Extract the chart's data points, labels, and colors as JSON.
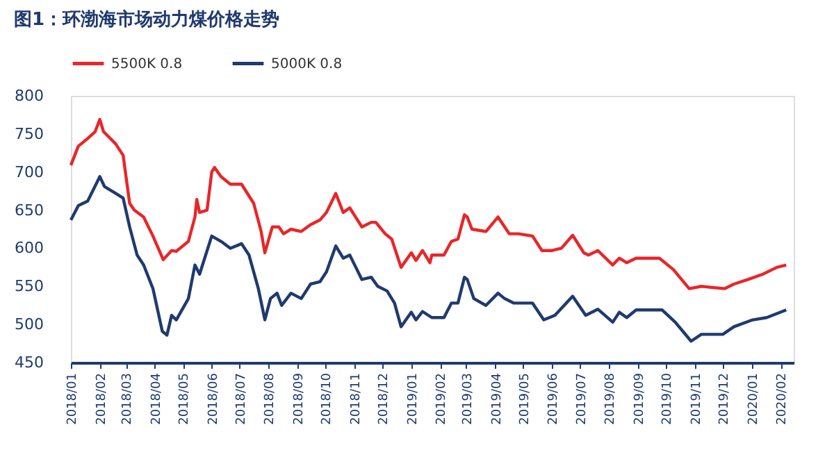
{
  "chart_data": {
    "type": "line",
    "title": "图1：环渤海市场动力煤价格走势",
    "legend": "top",
    "grid": false,
    "marker": "none",
    "line_style": "solid",
    "ylim": [
      450,
      800
    ],
    "yticks": [
      450,
      500,
      550,
      600,
      650,
      700,
      750,
      800
    ],
    "xlim": [
      "2018-01-01",
      "2020-02-15"
    ],
    "xticks": [
      {
        "value": "2018-01",
        "label": "2018/01"
      },
      {
        "value": "2018-02",
        "label": "2018/02"
      },
      {
        "value": "2018-03",
        "label": "2018/03"
      },
      {
        "value": "2018-04",
        "label": "2018/04"
      },
      {
        "value": "2018-05",
        "label": "2018/05"
      },
      {
        "value": "2018-06",
        "label": "2018/06"
      },
      {
        "value": "2018-07",
        "label": "2018/07"
      },
      {
        "value": "2018-08",
        "label": "2018/08"
      },
      {
        "value": "2018-09",
        "label": "2018/09"
      },
      {
        "value": "2018-10",
        "label": "2018/10"
      },
      {
        "value": "2018-11",
        "label": "2018/11"
      },
      {
        "value": "2018-12",
        "label": "2018/12"
      },
      {
        "value": "2019-01",
        "label": "2019/01"
      },
      {
        "value": "2019-02",
        "label": "2019/02"
      },
      {
        "value": "2019-03",
        "label": "2019/03"
      },
      {
        "value": "2019-04",
        "label": "2019/04"
      },
      {
        "value": "2019-05",
        "label": "2019/05"
      },
      {
        "value": "2019-06",
        "label": "2019/06"
      },
      {
        "value": "2019-07",
        "label": "2019/07"
      },
      {
        "value": "2019-08",
        "label": "2019/08"
      },
      {
        "value": "2019-09",
        "label": "2019/09"
      },
      {
        "value": "2019-10",
        "label": "2019/10"
      },
      {
        "value": "2019-11",
        "label": "2019/11"
      },
      {
        "value": "2019-12",
        "label": "2019/12"
      },
      {
        "value": "2020-01",
        "label": "2020/01"
      },
      {
        "value": "2020-02",
        "label": "2020/02"
      }
    ],
    "series": [
      {
        "name": "5500K 0.8",
        "color": "#e8262a",
        "x": [
          "2018-01-01",
          "2018-01-09",
          "2018-01-19",
          "2018-01-27",
          "2018-02-01",
          "2018-02-05",
          "2018-02-18",
          "2018-02-26",
          "2018-03-05",
          "2018-03-10",
          "2018-03-20",
          "2018-03-30",
          "2018-04-10",
          "2018-04-19",
          "2018-04-24",
          "2018-05-07",
          "2018-05-14",
          "2018-05-16",
          "2018-05-19",
          "2018-05-27",
          "2018-06-01",
          "2018-06-04",
          "2018-06-11",
          "2018-06-21",
          "2018-07-03",
          "2018-07-16",
          "2018-07-24",
          "2018-07-28",
          "2018-08-05",
          "2018-08-12",
          "2018-08-17",
          "2018-08-25",
          "2018-09-05",
          "2018-09-15",
          "2018-09-25",
          "2018-10-02",
          "2018-10-12",
          "2018-10-20",
          "2018-10-27",
          "2018-11-09",
          "2018-11-19",
          "2018-11-24",
          "2018-12-04",
          "2018-12-11",
          "2018-12-21",
          "2019-01-01",
          "2019-01-06",
          "2019-01-13",
          "2019-01-21",
          "2019-01-23",
          "2019-02-05",
          "2019-02-13",
          "2019-02-20",
          "2019-02-27",
          "2019-03-02",
          "2019-03-07",
          "2019-03-22",
          "2019-04-04",
          "2019-04-16",
          "2019-04-26",
          "2019-05-11",
          "2019-05-21",
          "2019-06-01",
          "2019-06-11",
          "2019-06-23",
          "2019-07-05",
          "2019-07-10",
          "2019-07-20",
          "2019-08-05",
          "2019-08-12",
          "2019-08-20",
          "2019-08-30",
          "2019-09-24",
          "2019-10-09",
          "2019-10-26",
          "2019-11-08",
          "2019-12-03",
          "2019-12-13",
          "2019-12-28",
          "2020-01-13",
          "2020-01-28",
          "2020-02-07"
        ],
        "values": [
          709,
          734,
          744,
          753,
          769,
          753,
          737,
          722,
          659,
          650,
          641,
          616,
          585,
          597,
          596,
          609,
          641,
          664,
          647,
          650,
          700,
          706,
          694,
          684,
          684,
          659,
          622,
          594,
          628,
          628,
          619,
          625,
          622,
          631,
          637,
          647,
          672,
          647,
          653,
          628,
          634,
          634,
          619,
          612,
          575,
          594,
          584,
          597,
          581,
          591,
          591,
          609,
          612,
          644,
          641,
          625,
          622,
          641,
          619,
          619,
          616,
          597,
          597,
          600,
          617,
          594,
          591,
          597,
          578,
          587,
          581,
          587,
          587,
          572,
          547,
          550,
          547,
          553,
          559,
          566,
          575,
          578
        ]
      },
      {
        "name": "5000K 0.8",
        "color": "#1f3a6e",
        "x": [
          "2018-01-01",
          "2018-01-09",
          "2018-01-19",
          "2018-02-01",
          "2018-02-06",
          "2018-02-18",
          "2018-02-26",
          "2018-03-05",
          "2018-03-13",
          "2018-03-20",
          "2018-03-30",
          "2018-04-09",
          "2018-04-14",
          "2018-04-19",
          "2018-04-24",
          "2018-05-07",
          "2018-05-14",
          "2018-05-19",
          "2018-06-01",
          "2018-06-11",
          "2018-06-21",
          "2018-07-03",
          "2018-07-11",
          "2018-07-21",
          "2018-07-28",
          "2018-08-03",
          "2018-08-10",
          "2018-08-15",
          "2018-08-25",
          "2018-09-05",
          "2018-09-15",
          "2018-09-25",
          "2018-10-02",
          "2018-10-12",
          "2018-10-20",
          "2018-10-27",
          "2018-11-09",
          "2018-11-19",
          "2018-11-26",
          "2018-12-06",
          "2018-12-14",
          "2018-12-21",
          "2019-01-01",
          "2019-01-06",
          "2019-01-13",
          "2019-01-23",
          "2019-02-05",
          "2019-02-13",
          "2019-02-20",
          "2019-02-27",
          "2019-03-02",
          "2019-03-09",
          "2019-03-22",
          "2019-04-04",
          "2019-04-11",
          "2019-04-21",
          "2019-05-11",
          "2019-05-23",
          "2019-06-04",
          "2019-06-23",
          "2019-07-07",
          "2019-07-20",
          "2019-08-05",
          "2019-08-12",
          "2019-08-20",
          "2019-08-30",
          "2019-09-27",
          "2019-10-11",
          "2019-10-28",
          "2019-11-08",
          "2019-12-01",
          "2019-12-13",
          "2020-01-02",
          "2020-01-17",
          "2020-02-07"
        ],
        "values": [
          637,
          656,
          662,
          694,
          681,
          672,
          666,
          628,
          591,
          578,
          547,
          491,
          486,
          512,
          506,
          534,
          578,
          566,
          616,
          609,
          600,
          606,
          591,
          547,
          506,
          534,
          541,
          525,
          541,
          534,
          553,
          556,
          569,
          603,
          587,
          591,
          559,
          562,
          550,
          544,
          528,
          497,
          516,
          506,
          517,
          509,
          509,
          528,
          528,
          562,
          559,
          534,
          525,
          541,
          534,
          528,
          528,
          506,
          512,
          537,
          512,
          520,
          503,
          516,
          509,
          519,
          519,
          503,
          478,
          487,
          487,
          497,
          506,
          509,
          519
        ]
      }
    ]
  }
}
